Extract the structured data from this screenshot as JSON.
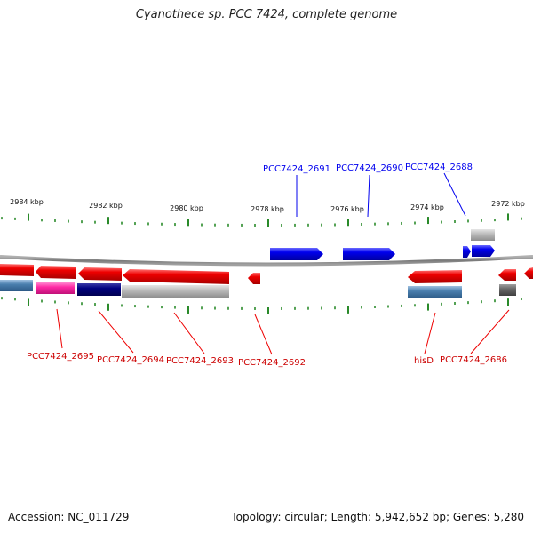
{
  "title": "Cyanothece sp. PCC 7424, complete genome",
  "footer": {
    "accession": "Accession: NC_011729",
    "summary": "Topology: circular; Length: 5,942,652 bp; Genes: 5,280"
  },
  "colors": {
    "forward_gene": "#0000ee",
    "reverse_gene": "#ee0000",
    "backbone": "#888888",
    "ticks": "#2a8a2a",
    "pink": "#ff2aa5",
    "navy": "#000080",
    "steel": "#4a7fae",
    "grey": "#b8b8b8",
    "dark_grey": "#6a6a6a"
  },
  "scale": {
    "ticks": [
      {
        "label": "2984 kbp",
        "kbp": 2984
      },
      {
        "label": "2982 kbp",
        "kbp": 2982
      },
      {
        "label": "2980 kbp",
        "kbp": 2980
      },
      {
        "label": "2978 kbp",
        "kbp": 2978
      },
      {
        "label": "2976 kbp",
        "kbp": 2976
      },
      {
        "label": "2974 kbp",
        "kbp": 2974
      },
      {
        "label": "2972 kbp",
        "kbp": 2972
      }
    ]
  },
  "labels": {
    "forward": [
      {
        "text": "PCC7424_2691"
      },
      {
        "text": "PCC7424_2690"
      },
      {
        "text": "PCC7424_2688"
      }
    ],
    "reverse": [
      {
        "text": "PCC7424_2695"
      },
      {
        "text": "PCC7424_2694"
      },
      {
        "text": "PCC7424_2693"
      },
      {
        "text": "PCC7424_2692"
      },
      {
        "text": "hisD"
      },
      {
        "text": "PCC7424_2686"
      }
    ]
  }
}
